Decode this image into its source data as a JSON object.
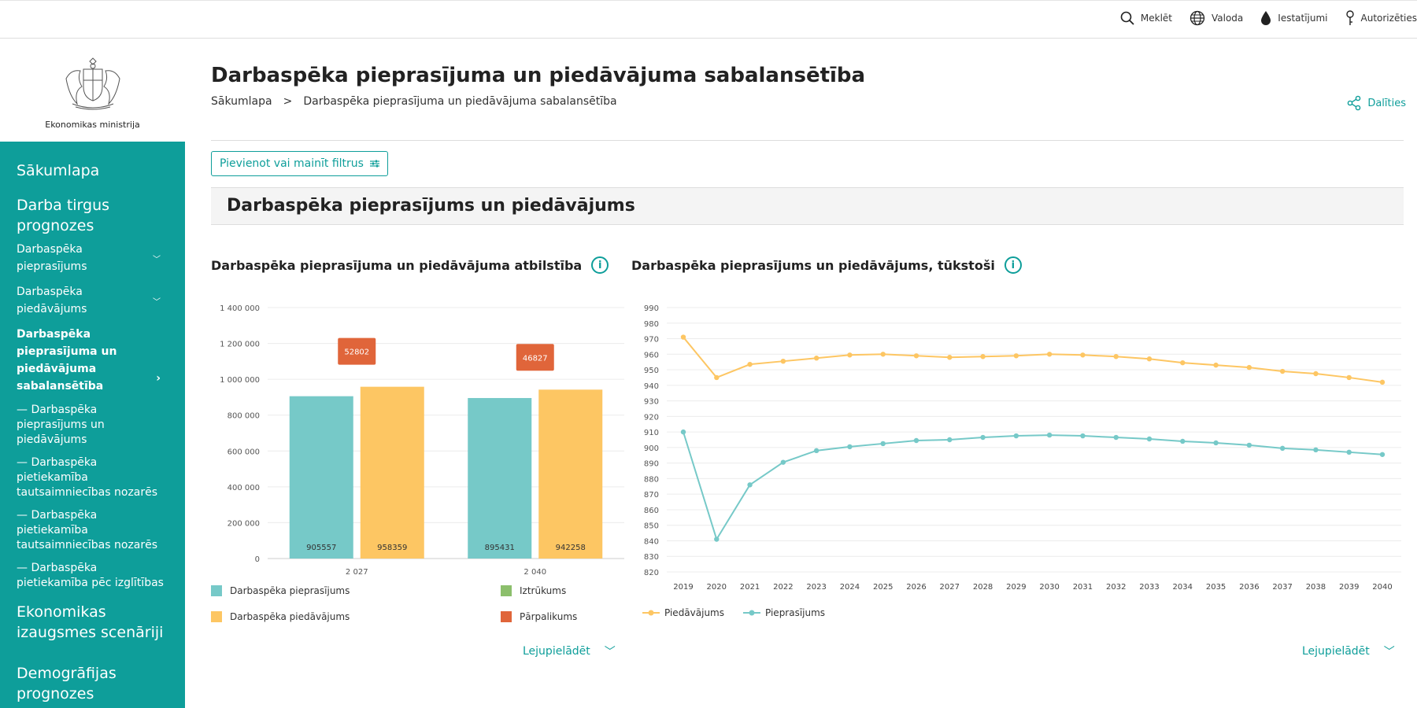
{
  "topnav": {
    "search": "Meklēt",
    "language": "Valoda",
    "settings": "Iestatījumi",
    "login": "Autorizēties"
  },
  "logo": {
    "name": "Ekonomikas ministrija"
  },
  "sidebar": {
    "home": "Sākumlapa",
    "group1": "Darba tirgus prognozes",
    "items": [
      {
        "label": "Darbaspēka pieprasījums",
        "chevron": "chevron-down"
      },
      {
        "label": "Darbaspēka piedāvājums",
        "chevron": "chevron-down"
      },
      {
        "label": "Darbaspēka pieprasījuma un piedāvājuma sabalansētība",
        "chevron": "chevron-right",
        "active": true
      }
    ],
    "children": [
      "— Darbaspēka pieprasījums un piedāvājums",
      "— Darbaspēka pietiekamība tautsaimniecības nozarēs",
      "— Darbaspēka pietiekamība tautsaimniecības nozarēs",
      "— Darbaspēka pietiekamība pēc izglītības"
    ],
    "group2": "Ekonomikas izaugsmes scenāriji",
    "group3": "Demogrāfijas prognozes"
  },
  "page": {
    "title": "Darbaspēka pieprasījuma un piedāvājuma sabalansētība",
    "breadcrumb_home": "Sākumlapa",
    "breadcrumb_sep": ">",
    "breadcrumb_current": "Darbaspēka pieprasījuma un piedāvājuma sabalansētība",
    "share": "Dalīties",
    "filter_button": "Pievienot vai mainīt filtrus",
    "section_title": "Darbaspēka pieprasījums un piedāvājums",
    "download": "Lejupielādēt"
  },
  "colors": {
    "accent": "#0e9e9a",
    "demand": "#76c9c8",
    "supply": "#fdc663",
    "shortage": "#8cbf6c",
    "surplus": "#e0653a"
  },
  "chart_data": [
    {
      "type": "bar",
      "title": "Darbaspēka pieprasījuma un piedāvājuma atbilstība",
      "categories": [
        "2 027",
        "2 040"
      ],
      "series": [
        {
          "name": "Darbaspēka pieprasījums",
          "values": [
            905557,
            895431
          ],
          "labels": [
            "905557",
            "895431"
          ]
        },
        {
          "name": "Darbaspēka piedāvājums",
          "values": [
            958359,
            942258
          ],
          "labels": [
            "958359",
            "942258"
          ]
        }
      ],
      "surplus_labels": [
        "52802",
        "46827"
      ],
      "legend": [
        "Darbaspēka pieprasījums",
        "Darbaspēka piedāvājums",
        "Iztrūkums",
        "Pārpalikums"
      ],
      "ylim": [
        0,
        1400000
      ],
      "yticks": [
        0,
        200000,
        400000,
        600000,
        800000,
        1000000,
        1200000,
        1400000
      ],
      "ytick_labels": [
        "0",
        "200 000",
        "400 000",
        "600 000",
        "800 000",
        "1 000 000",
        "1 200 000",
        "1 400 000"
      ],
      "legend_position": "bottom",
      "grid": true
    },
    {
      "type": "line",
      "title": "Darbaspēka pieprasījums un piedāvājums, tūkstoši",
      "x": [
        "2019",
        "2020",
        "2021",
        "2022",
        "2023",
        "2024",
        "2025",
        "2026",
        "2027",
        "2028",
        "2029",
        "2030",
        "2031",
        "2032",
        "2033",
        "2034",
        "2035",
        "2036",
        "2037",
        "2038",
        "2039",
        "2040"
      ],
      "series": [
        {
          "name": "Piedāvājums",
          "values": [
            971,
            945,
            953.5,
            955.5,
            957.5,
            959.5,
            960,
            959,
            958,
            958.5,
            959,
            960,
            959.5,
            958.5,
            957,
            954.5,
            953,
            951.5,
            949,
            947.5,
            945,
            942
          ]
        },
        {
          "name": "Pieprasījums",
          "values": [
            910,
            841,
            876,
            890.5,
            898,
            900.5,
            902.5,
            904.5,
            905,
            906.5,
            907.5,
            908,
            907.5,
            906.5,
            905.5,
            904,
            903,
            901.5,
            899.5,
            898.5,
            897,
            895.5
          ]
        }
      ],
      "ylim": [
        820,
        990
      ],
      "yticks": [
        820,
        830,
        840,
        850,
        860,
        870,
        880,
        890,
        900,
        910,
        920,
        930,
        940,
        950,
        960,
        970,
        980,
        990
      ],
      "legend_position": "bottom-left",
      "grid": true
    }
  ]
}
